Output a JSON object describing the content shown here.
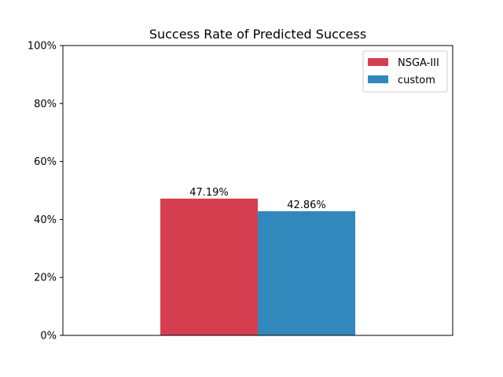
{
  "chart_data": {
    "type": "bar",
    "title": "Success Rate of Predicted Success",
    "xlabel": "",
    "ylabel": "",
    "categories": [
      ""
    ],
    "series": [
      {
        "name": "NSGA-III",
        "values": [
          47.19
        ],
        "label": "47.19%",
        "color": "#d53e4f"
      },
      {
        "name": "custom",
        "values": [
          42.86
        ],
        "label": "42.86%",
        "color": "#3288bd"
      }
    ],
    "ylim": [
      0,
      100
    ],
    "yticks": [
      {
        "value": 0,
        "label": "0%"
      },
      {
        "value": 20,
        "label": "20%"
      },
      {
        "value": 40,
        "label": "40%"
      },
      {
        "value": 60,
        "label": "60%"
      },
      {
        "value": 80,
        "label": "80%"
      },
      {
        "value": 100,
        "label": "100%"
      }
    ],
    "grid": false,
    "legend_position": "top-right"
  }
}
